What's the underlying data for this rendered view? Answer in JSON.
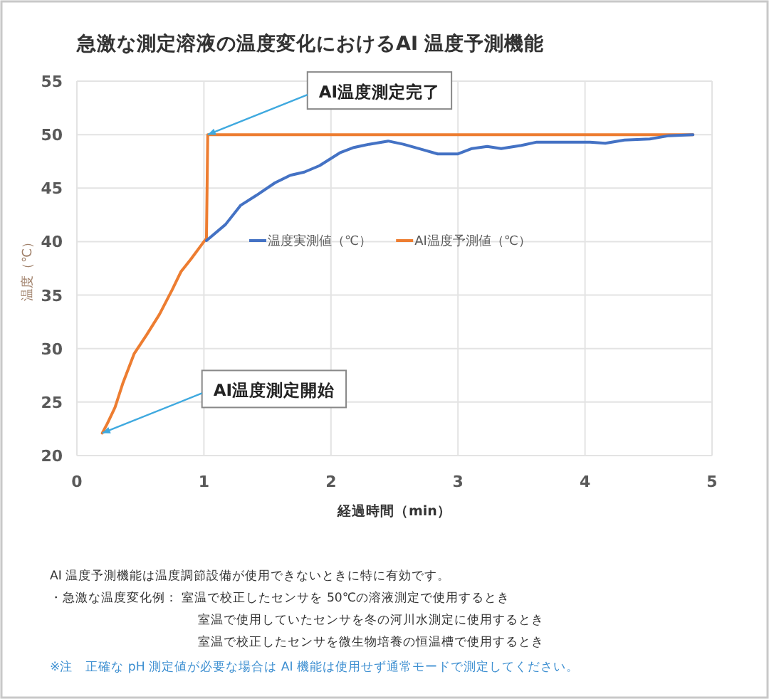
{
  "chart_data": {
    "type": "line",
    "title": "急激な測定溶液の温度変化におけるAI 温度予測機能",
    "xlabel": "経過時間（min）",
    "ylabel": "温度（℃）",
    "xlim": [
      0,
      5
    ],
    "xticks": [
      0,
      1,
      2,
      3,
      4,
      5
    ],
    "ylim": [
      20,
      55
    ],
    "yticks": [
      20,
      25,
      30,
      35,
      40,
      45,
      50,
      55
    ],
    "grid": true,
    "legend": "top",
    "marker": "none",
    "line_style": "solid",
    "series": [
      {
        "name": "温度実測値（℃）",
        "color": "#4472c4",
        "x": [
          1.02,
          1.17,
          1.29,
          1.41,
          1.56,
          1.68,
          1.79,
          1.91,
          2.07,
          2.18,
          2.3,
          2.45,
          2.57,
          2.72,
          2.84,
          3.0,
          3.11,
          3.23,
          3.34,
          3.5,
          3.62,
          3.85,
          4.04,
          4.16,
          4.31,
          4.51,
          4.66,
          4.85
        ],
        "values": [
          40.1,
          41.6,
          43.4,
          44.3,
          45.5,
          46.2,
          46.5,
          47.1,
          48.3,
          48.8,
          49.1,
          49.4,
          49.1,
          48.6,
          48.2,
          48.2,
          48.7,
          48.9,
          48.7,
          49.0,
          49.3,
          49.3,
          49.3,
          49.2,
          49.5,
          49.6,
          49.9,
          50.0
        ]
      },
      {
        "name": "AI温度予測値（℃）",
        "color": "#ed7d31",
        "x": [
          0.2,
          0.24,
          0.3,
          0.36,
          0.45,
          0.55,
          0.65,
          0.75,
          0.82,
          0.9,
          1.0,
          1.02,
          1.03,
          4.85
        ],
        "values": [
          22.1,
          23,
          24.5,
          26.7,
          29.5,
          31.3,
          33.2,
          35.5,
          37.2,
          38.4,
          40,
          40.3,
          50,
          50
        ]
      }
    ],
    "annotations": [
      {
        "text": "AI温度測定完了",
        "x": 1.03,
        "y": 50
      },
      {
        "text": "AI温度測定開始",
        "x": 0.2,
        "y": 22.1
      },
      "AI 温度予測機能は温度調節設備が使用できないときに特に有効です。",
      "・急激な温度変化例： 室温で校正したセンサを 50℃の溶液測定で使用するとき",
      "室温で使用していたセンサを冬の河川水測定に使用するとき",
      "室温で校正したセンサを微生物培養の恒温槽で使用するとき",
      "※注　正確な pH 測定値が必要な場合は AI 機能は使用せず通常モードで測定してください。"
    ]
  }
}
